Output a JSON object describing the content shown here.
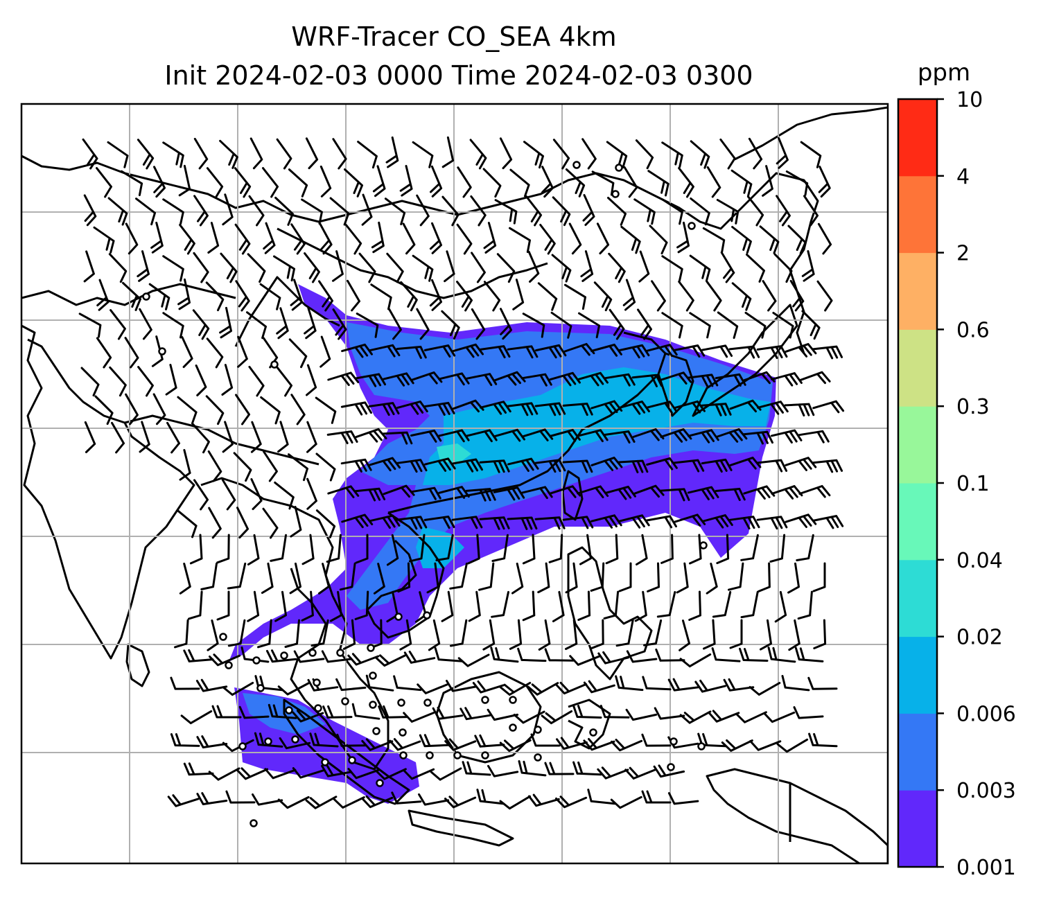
{
  "title": {
    "line1": "WRF-Tracer CO_SEA 4km",
    "line2": "Init 2024-02-03 0000 Time 2024-02-03 0300"
  },
  "colorbar": {
    "unit": "ppm",
    "ticks": [
      "0.001",
      "0.003",
      "0.006",
      "0.02",
      "0.04",
      "0.1",
      "0.3",
      "0.6",
      "2",
      "4",
      "10"
    ],
    "colors": [
      "#6128fb",
      "#3478f5",
      "#07b1e9",
      "#2ddcd5",
      "#68f8b9",
      "#98f79a",
      "#cde285",
      "#feb064",
      "#fe7438",
      "#ff2b15"
    ]
  },
  "map": {
    "tracer_colors": {
      "low": "#6128fb",
      "mid": "#3478f5",
      "high": "#07b1e9",
      "peak": "#2ddcd5"
    },
    "coastline_color": "#000000",
    "gridline_color": "#b0b0b0",
    "barb_color": "#000000"
  }
}
